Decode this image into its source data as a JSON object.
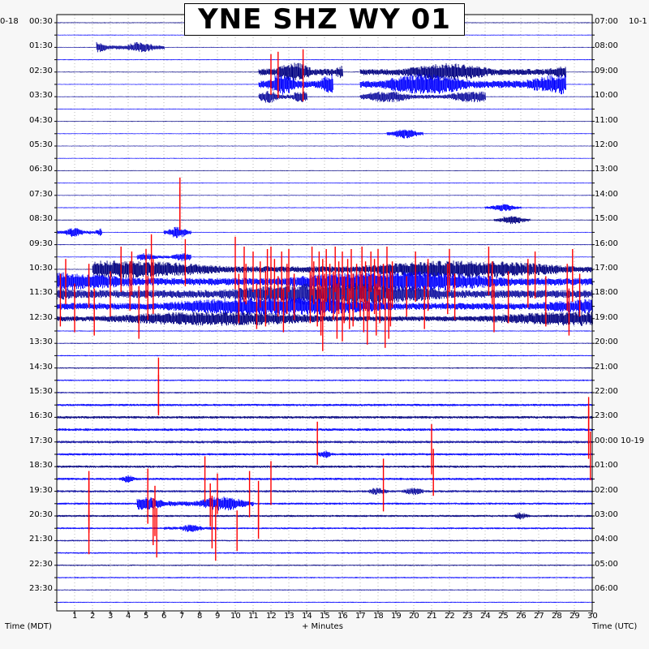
{
  "title": "YNE SHZ WY 01",
  "corner_left": "0-18",
  "corner_right": "10-1",
  "axis_left_label": "Time (MDT)",
  "axis_bottom_label": "+ Minutes",
  "axis_right_label": "Time (UTC)",
  "colors": {
    "trace_cycle": [
      "#000080",
      "#0000ff",
      "#1010a0",
      "#0000ff"
    ],
    "clip": "#ff0000",
    "frame": "#000000",
    "grid": "#000000",
    "background": "#ffffff"
  },
  "chart_data": {
    "type": "heliplot",
    "x": {
      "label": "+ Minutes",
      "range": [
        0,
        30
      ],
      "ticks": [
        1,
        2,
        3,
        4,
        5,
        6,
        7,
        8,
        9,
        10,
        11,
        12,
        13,
        14,
        15,
        16,
        17,
        18,
        19,
        20,
        21,
        22,
        23,
        24,
        25,
        26,
        27,
        28,
        29,
        30
      ]
    },
    "left_time_labels": [
      "00:30",
      "01:30",
      "02:30",
      "03:30",
      "04:30",
      "05:30",
      "06:30",
      "07:30",
      "08:30",
      "09:30",
      "10:30",
      "11:30",
      "12:30",
      "13:30",
      "14:30",
      "15:30",
      "16:30",
      "17:30",
      "18:30",
      "19:30",
      "20:30",
      "21:30",
      "22:30",
      "23:30"
    ],
    "right_time_labels": [
      "07:00",
      "08:00",
      "09:00",
      "10:00",
      "11:00",
      "12:00",
      "13:00",
      "14:00",
      "15:00",
      "16:00",
      "17:00",
      "18:00",
      "19:00",
      "20:00",
      "21:00",
      "22:00",
      "23:00",
      "00:00 10-19",
      "01:00",
      "02:00",
      "03:00",
      "04:00",
      "05:00",
      "06:00"
    ],
    "rows_per_hour": 2,
    "total_rows": 48,
    "row_noise_level": [
      0.35,
      0.3,
      0.3,
      0.35,
      0.3,
      0.3,
      0.3,
      0.3,
      0.3,
      0.3,
      0.3,
      0.3,
      0.3,
      0.3,
      0.3,
      0.35,
      0.3,
      0.3,
      0.35,
      0.3,
      0.3,
      0.3,
      0.35,
      0.3,
      0.35,
      0.4,
      0.4,
      0.45,
      0.5,
      0.55,
      0.6,
      0.9,
      1.0,
      1.0,
      1.0,
      0.9,
      0.9,
      0.9,
      0.9,
      0.8,
      0.8,
      0.7,
      0.6,
      0.6,
      0.5,
      0.5,
      0.4,
      0.4
    ],
    "events": [
      {
        "row": 2,
        "start_min": 2.2,
        "end_min": 6.0,
        "amp": 1.4
      },
      {
        "row": 4,
        "start_min": 11.3,
        "end_min": 16.0,
        "amp": 2.4,
        "clip": true
      },
      {
        "row": 4,
        "start_min": 17.0,
        "end_min": 28.5,
        "amp": 2.2
      },
      {
        "row": 5,
        "start_min": 11.3,
        "end_min": 15.5,
        "amp": 2.6,
        "clip": true
      },
      {
        "row": 5,
        "start_min": 17.0,
        "end_min": 28.5,
        "amp": 2.6
      },
      {
        "row": 6,
        "start_min": 11.3,
        "end_min": 14.0,
        "amp": 1.6
      },
      {
        "row": 6,
        "start_min": 17.0,
        "end_min": 24.0,
        "amp": 1.4
      },
      {
        "row": 9,
        "start_min": 18.5,
        "end_min": 20.5,
        "amp": 1.2
      },
      {
        "row": 15,
        "start_min": 24.0,
        "end_min": 26.0,
        "amp": 0.9
      },
      {
        "row": 16,
        "start_min": 24.5,
        "end_min": 26.5,
        "amp": 1.0
      },
      {
        "row": 17,
        "start_min": 0.0,
        "end_min": 2.5,
        "amp": 1.2
      },
      {
        "row": 17,
        "start_min": 6.0,
        "end_min": 7.5,
        "amp": 1.4,
        "clip": true
      },
      {
        "row": 19,
        "start_min": 4.5,
        "end_min": 7.5,
        "amp": 1.0,
        "clip": true
      },
      {
        "row": 20,
        "start_min": 2.0,
        "end_min": 30.0,
        "amp": 2.2,
        "clip": true
      },
      {
        "row": 21,
        "start_min": 0.0,
        "end_min": 30.0,
        "amp": 2.6,
        "clip": true
      },
      {
        "row": 22,
        "start_min": 0.0,
        "end_min": 30.0,
        "amp": 2.8,
        "clip": true
      },
      {
        "row": 23,
        "start_min": 0.0,
        "end_min": 30.0,
        "amp": 2.4,
        "clip": true
      },
      {
        "row": 24,
        "start_min": 0.0,
        "end_min": 30.0,
        "amp": 1.8,
        "clip": true
      },
      {
        "row": 35,
        "start_min": 14.5,
        "end_min": 15.5,
        "amp": 1.0,
        "clip": true
      },
      {
        "row": 37,
        "start_min": 3.5,
        "end_min": 4.5,
        "amp": 1.0
      },
      {
        "row": 38,
        "start_min": 17.5,
        "end_min": 20.5,
        "amp": 0.9
      },
      {
        "row": 39,
        "start_min": 4.5,
        "end_min": 11.0,
        "amp": 1.8,
        "clip": true
      },
      {
        "row": 40,
        "start_min": 25.5,
        "end_min": 26.5,
        "amp": 0.9
      },
      {
        "row": 41,
        "start_min": 6.0,
        "end_min": 9.0,
        "amp": 1.0,
        "clip": true
      }
    ],
    "clip_spikes": [
      {
        "row": 4,
        "min": 12.0
      },
      {
        "row": 4,
        "min": 12.4
      },
      {
        "row": 4,
        "min": 13.8
      },
      {
        "row": 14,
        "min": 6.9
      },
      {
        "row": 15,
        "min": 6.9
      },
      {
        "row": 19,
        "min": 5.3
      },
      {
        "row": 19,
        "min": 7.2
      },
      {
        "row": 19,
        "min": 10.0
      },
      {
        "row": 20,
        "min": 3.6
      },
      {
        "row": 20,
        "min": 4.2
      },
      {
        "row": 20,
        "min": 5.0
      },
      {
        "row": 20,
        "min": 10.5
      },
      {
        "row": 20,
        "min": 11.0
      },
      {
        "row": 20,
        "min": 11.8
      },
      {
        "row": 20,
        "min": 12.0
      },
      {
        "row": 20,
        "min": 12.6
      },
      {
        "row": 20,
        "min": 13.0
      },
      {
        "row": 20,
        "min": 14.3
      },
      {
        "row": 20,
        "min": 14.7
      },
      {
        "row": 20,
        "min": 15.1
      },
      {
        "row": 20,
        "min": 15.6
      },
      {
        "row": 20,
        "min": 16.0
      },
      {
        "row": 20,
        "min": 16.5
      },
      {
        "row": 20,
        "min": 17.1
      },
      {
        "row": 20,
        "min": 17.6
      },
      {
        "row": 20,
        "min": 18.0
      },
      {
        "row": 20,
        "min": 18.5
      },
      {
        "row": 20,
        "min": 20.1
      },
      {
        "row": 20,
        "min": 22.0
      },
      {
        "row": 20,
        "min": 24.2
      },
      {
        "row": 20,
        "min": 26.8
      },
      {
        "row": 20,
        "min": 28.9
      },
      {
        "row": 21,
        "min": 0.5
      },
      {
        "row": 21,
        "min": 1.8
      },
      {
        "row": 21,
        "min": 4.1
      },
      {
        "row": 21,
        "min": 5.4
      },
      {
        "row": 21,
        "min": 10.6
      },
      {
        "row": 21,
        "min": 11.4
      },
      {
        "row": 21,
        "min": 12.2
      },
      {
        "row": 21,
        "min": 12.9
      },
      {
        "row": 21,
        "min": 14.4
      },
      {
        "row": 21,
        "min": 14.9
      },
      {
        "row": 21,
        "min": 15.3
      },
      {
        "row": 21,
        "min": 15.8
      },
      {
        "row": 21,
        "min": 16.3
      },
      {
        "row": 21,
        "min": 16.8
      },
      {
        "row": 21,
        "min": 17.3
      },
      {
        "row": 21,
        "min": 17.8
      },
      {
        "row": 21,
        "min": 18.3
      },
      {
        "row": 21,
        "min": 18.8
      },
      {
        "row": 21,
        "min": 20.8
      },
      {
        "row": 21,
        "min": 21.9
      },
      {
        "row": 21,
        "min": 24.4
      },
      {
        "row": 21,
        "min": 26.4
      },
      {
        "row": 21,
        "min": 28.6
      },
      {
        "row": 22,
        "min": 0.2
      },
      {
        "row": 22,
        "min": 3.0
      },
      {
        "row": 22,
        "min": 5.1
      },
      {
        "row": 22,
        "min": 10.2
      },
      {
        "row": 22,
        "min": 11.7
      },
      {
        "row": 22,
        "min": 12.4
      },
      {
        "row": 22,
        "min": 13.3
      },
      {
        "row": 22,
        "min": 14.2
      },
      {
        "row": 22,
        "min": 14.6
      },
      {
        "row": 22,
        "min": 15.0
      },
      {
        "row": 22,
        "min": 15.5
      },
      {
        "row": 22,
        "min": 16.1
      },
      {
        "row": 22,
        "min": 16.6
      },
      {
        "row": 22,
        "min": 17.0
      },
      {
        "row": 22,
        "min": 17.5
      },
      {
        "row": 22,
        "min": 18.1
      },
      {
        "row": 22,
        "min": 18.7
      },
      {
        "row": 22,
        "min": 19.6
      },
      {
        "row": 22,
        "min": 22.3
      },
      {
        "row": 22,
        "min": 25.3
      },
      {
        "row": 22,
        "min": 27.4
      },
      {
        "row": 22,
        "min": 29.3
      },
      {
        "row": 23,
        "min": 1.0
      },
      {
        "row": 23,
        "min": 2.1
      },
      {
        "row": 23,
        "min": 4.6
      },
      {
        "row": 23,
        "min": 11.2
      },
      {
        "row": 23,
        "min": 12.7
      },
      {
        "row": 23,
        "min": 14.8
      },
      {
        "row": 23,
        "min": 15.7
      },
      {
        "row": 23,
        "min": 16.4
      },
      {
        "row": 23,
        "min": 17.2
      },
      {
        "row": 23,
        "min": 17.9
      },
      {
        "row": 23,
        "min": 18.6
      },
      {
        "row": 23,
        "min": 20.6
      },
      {
        "row": 23,
        "min": 24.5
      },
      {
        "row": 23,
        "min": 28.7
      },
      {
        "row": 24,
        "min": 14.9
      },
      {
        "row": 24,
        "min": 16.0
      },
      {
        "row": 24,
        "min": 17.4
      },
      {
        "row": 24,
        "min": 18.4
      },
      {
        "row": 29,
        "min": 5.7
      },
      {
        "row": 30,
        "min": 5.7
      },
      {
        "row": 32,
        "min": 29.8
      },
      {
        "row": 33,
        "min": 29.8
      },
      {
        "row": 34,
        "min": 21.0
      },
      {
        "row": 34,
        "min": 14.6
      },
      {
        "row": 35,
        "min": 29.9
      },
      {
        "row": 36,
        "min": 21.1
      },
      {
        "row": 37,
        "min": 18.3
      },
      {
        "row": 37,
        "min": 8.3
      },
      {
        "row": 37,
        "min": 12.0
      },
      {
        "row": 38,
        "min": 1.8
      },
      {
        "row": 38,
        "min": 5.1
      },
      {
        "row": 38,
        "min": 9.0
      },
      {
        "row": 38,
        "min": 10.8
      },
      {
        "row": 39,
        "min": 1.8
      },
      {
        "row": 39,
        "min": 5.5
      },
      {
        "row": 39,
        "min": 8.6
      },
      {
        "row": 39,
        "min": 11.3
      },
      {
        "row": 40,
        "min": 5.4
      },
      {
        "row": 40,
        "min": 8.7
      },
      {
        "row": 40,
        "min": 11.3
      },
      {
        "row": 41,
        "min": 1.8
      },
      {
        "row": 41,
        "min": 5.6
      },
      {
        "row": 41,
        "min": 8.9
      },
      {
        "row": 41,
        "min": 10.1
      }
    ]
  }
}
